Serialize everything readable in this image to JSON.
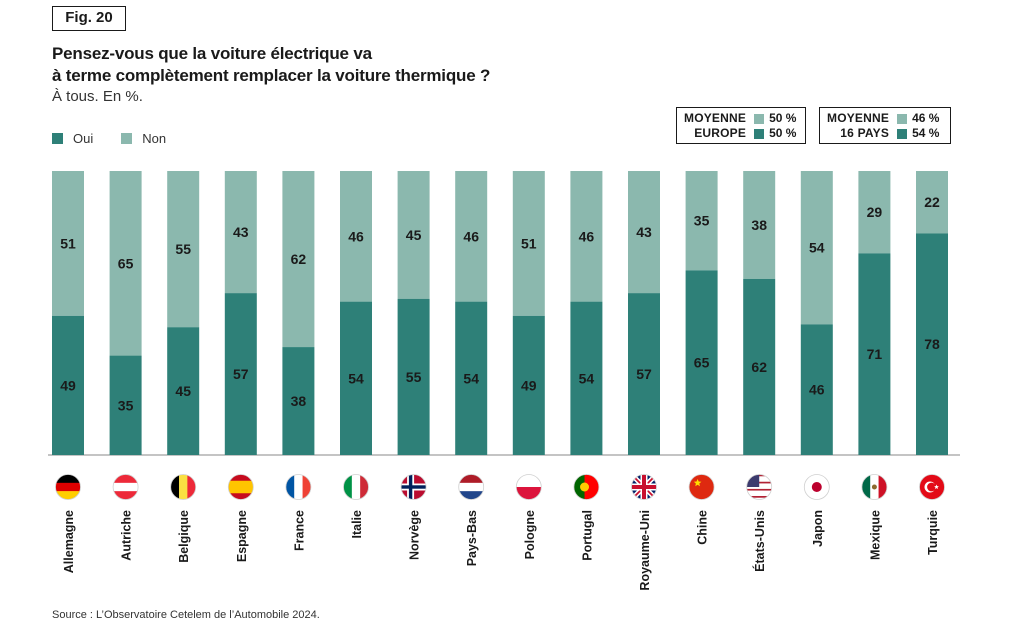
{
  "figure": {
    "badge": "Fig. 20",
    "title_line1": "Pensez-vous que la voiture électrique va",
    "title_line2": "à terme complètement remplacer la voiture thermique ?",
    "subtitle": "À tous. En %.",
    "source": "Source : L’Observatoire Cetelem de l’Automobile 2024."
  },
  "legend": {
    "oui": "Oui",
    "non": "Non"
  },
  "averages": {
    "europe": {
      "label1": "MOYENNE",
      "label2": "EUROPE",
      "non": "50 %",
      "oui": "50 %"
    },
    "all": {
      "label1": "MOYENNE",
      "label2": "16 PAYS",
      "non": "46 %",
      "oui": "54 %"
    }
  },
  "colors": {
    "oui": "#2e8078",
    "non": "#8bb8ae"
  },
  "chart_data": {
    "type": "bar",
    "stacked": true,
    "title": "Pensez-vous que la voiture électrique va à terme complètement remplacer la voiture thermique ?",
    "ylabel": "%",
    "ylim": [
      0,
      100
    ],
    "categories": [
      "Allemagne",
      "Autriche",
      "Belgique",
      "Espagne",
      "France",
      "Italie",
      "Norvège",
      "Pays-Bas",
      "Pologne",
      "Portugal",
      "Royaume-Uni",
      "Chine",
      "États-Unis",
      "Japon",
      "Mexique",
      "Turquie"
    ],
    "flags": [
      "germany-flag",
      "austria-flag",
      "belgium-flag",
      "spain-flag",
      "france-flag",
      "italy-flag",
      "norway-flag",
      "netherlands-flag",
      "poland-flag",
      "portugal-flag",
      "uk-flag",
      "china-flag",
      "usa-flag",
      "japan-flag",
      "mexico-flag",
      "turkey-flag"
    ],
    "series": [
      {
        "name": "Oui",
        "values": [
          49,
          35,
          45,
          57,
          38,
          54,
          55,
          54,
          49,
          54,
          57,
          65,
          62,
          46,
          71,
          78
        ]
      },
      {
        "name": "Non",
        "values": [
          51,
          65,
          55,
          43,
          62,
          46,
          45,
          46,
          51,
          46,
          43,
          35,
          38,
          54,
          29,
          22
        ]
      }
    ]
  }
}
